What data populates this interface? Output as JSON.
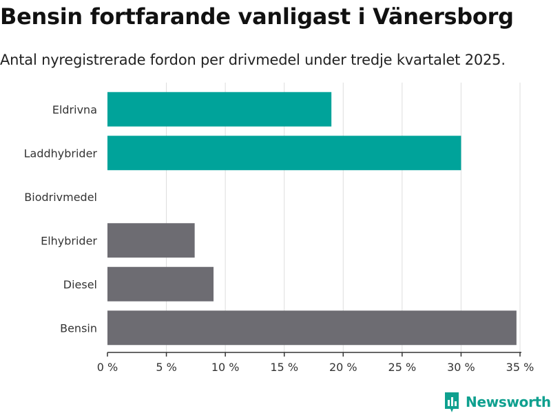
{
  "title": "Bensin fortfarande vanligast i Vänersborg",
  "subtitle": "Antal nyregistrerade fordon per drivmedel under tredje kvartalet 2025.",
  "logo": {
    "text": "Newsworthy",
    "icon": "newsworthy-chart-icon"
  },
  "colors": {
    "highlight": "#00a39a",
    "neutral": "#6d6c72",
    "grid": "#dddddd",
    "axis": "#333333",
    "brand": "#0fa08f"
  },
  "chart_data": {
    "type": "bar",
    "orientation": "horizontal",
    "title": "Bensin fortfarande vanligast i Vänersborg",
    "xlabel": "",
    "ylabel": "",
    "xlim": [
      0,
      35
    ],
    "unit_suffix": " %",
    "ticks": [
      0,
      5,
      10,
      15,
      20,
      25,
      30,
      35
    ],
    "tick_labels": [
      "0 %",
      "5 %",
      "10 %",
      "15 %",
      "20 %",
      "25 %",
      "30 %",
      "35 %"
    ],
    "grid": true,
    "categories": [
      "Eldrivna",
      "Laddhybrider",
      "Biodrivmedel",
      "Elhybrider",
      "Diesel",
      "Bensin"
    ],
    "values": [
      19.0,
      30.0,
      0,
      7.4,
      9.0,
      34.7
    ],
    "bar_colors": [
      "highlight",
      "highlight",
      "neutral",
      "neutral",
      "neutral",
      "neutral"
    ]
  }
}
